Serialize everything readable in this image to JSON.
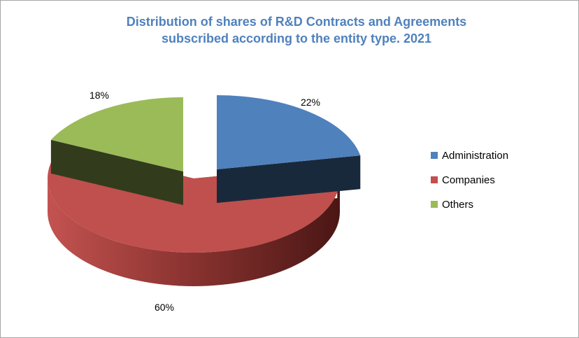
{
  "chart_data": {
    "type": "pie",
    "title": "Distribution of shares of R&D Contracts and Agreements subscribed according to the entity type. 2021",
    "title_lines": [
      "Distribution of shares of R&D Contracts and Agreements",
      "subscribed according to the entity type. 2021"
    ],
    "three_d": true,
    "exploded": true,
    "legend_position": "right",
    "slices": [
      {
        "name": "Administration",
        "value": 22,
        "label": "22%",
        "color": "#4f81bd"
      },
      {
        "name": "Companies",
        "value": 60,
        "label": "60%",
        "color": "#c0504d"
      },
      {
        "name": "Others",
        "value": 18,
        "label": "18%",
        "color": "#9bbb59"
      }
    ]
  }
}
